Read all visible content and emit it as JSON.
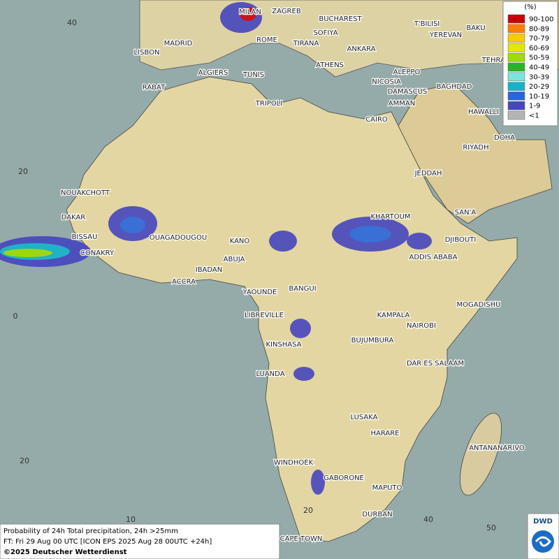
{
  "legend": {
    "unit": "(%)",
    "items": [
      {
        "label": "90-100",
        "color": "#c8000a"
      },
      {
        "label": "80-89",
        "color": "#ff7d00"
      },
      {
        "label": "70-79",
        "color": "#ffc800"
      },
      {
        "label": "60-69",
        "color": "#e6e600"
      },
      {
        "label": "50-59",
        "color": "#a0dc00"
      },
      {
        "label": "40-49",
        "color": "#28b428"
      },
      {
        "label": "30-39",
        "color": "#78e6dc"
      },
      {
        "label": "20-29",
        "color": "#14b4c8"
      },
      {
        "label": "10-19",
        "color": "#2864dc"
      },
      {
        "label": "1-9",
        "color": "#4646be"
      },
      {
        "label": "<1",
        "color": "#b4b4b4"
      }
    ]
  },
  "cities": [
    "MILAN",
    "ZAGREB",
    "BUCHAREST",
    "T'BILISI",
    "BAKU",
    "SOFIYA",
    "YEREVAN",
    "MADRID",
    "ROME",
    "TIRANA",
    "ANKARA",
    "LISBON",
    "TEHRAN",
    "ATHENS",
    "ALGIERS",
    "TUNIS",
    "ALEPPO",
    "RABAT",
    "NICOSIA",
    "BAGHDAD",
    "DAMASCUS",
    "TRIPOLI",
    "AMMAN",
    "HAWALLI",
    "CAIRO",
    "DOHA",
    "RIYADH",
    "JEDDAH",
    "NOUAKCHOTT",
    "KHARTOUM",
    "SAN'A",
    "DAKAR",
    "BISSAU",
    "DJIBOUTI",
    "OUAGADOUGOU",
    "KANO",
    "CONAKRY",
    "ABUJA",
    "ADDIS ABABA",
    "IBADAN",
    "ACCRA",
    "YAOUNDE",
    "BANGUI",
    "MOGADISHU",
    "LIBREVILLE",
    "KAMPALA",
    "NAIROBI",
    "KINSHASA",
    "BUJUMBURA",
    "DAR ES SALAAM",
    "LUANDA",
    "LUSAKA",
    "HARARE",
    "ANTANANARIVO",
    "WINDHOEK",
    "GABORONE",
    "MAPUTO",
    "DURBAN",
    "CAPE TOWN"
  ],
  "latitude_labels": [
    40,
    20,
    0,
    20
  ],
  "longitude_labels": [
    10,
    20,
    40,
    50
  ],
  "caption": [
    "Probability of 24h Total precipitation, 24h >25mm",
    "FT: Fri 29 Aug 00 UTC [ICON EPS 2025 Aug 28 00UTC +24h]",
    "©2025 Deutscher Wetterdienst"
  ],
  "logo": "DWD"
}
